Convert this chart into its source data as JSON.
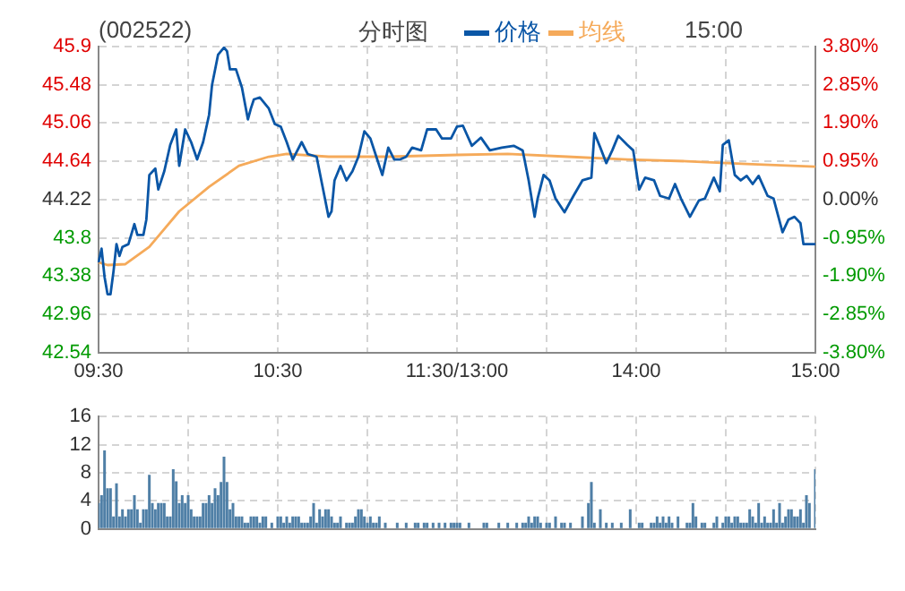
{
  "chart_data": [
    {
      "type": "line",
      "title": "(002522)",
      "subtitle": "分时图",
      "annotations": [
        "15:00"
      ],
      "legend": "top",
      "grid": true,
      "marker": "none",
      "line_style": "solid",
      "categories": [
        "09:30",
        null,
        null,
        null,
        null,
        null,
        null,
        null,
        null,
        null,
        null,
        null,
        null,
        null,
        null,
        null,
        null,
        null,
        null,
        null,
        null,
        null,
        null,
        null,
        null,
        null,
        null,
        null,
        null,
        null,
        null,
        null,
        null,
        null,
        null,
        null,
        null,
        null,
        null,
        null,
        null,
        null,
        null,
        null,
        null,
        null,
        null,
        null,
        null,
        null,
        null,
        null,
        null,
        null,
        null,
        null,
        null,
        null,
        null,
        null,
        "10:30",
        null,
        null,
        null,
        null,
        null,
        null,
        null,
        null,
        null,
        null,
        null,
        null,
        null,
        null,
        null,
        null,
        null,
        null,
        null,
        null,
        null,
        null,
        null,
        null,
        null,
        null,
        null,
        null,
        null,
        null,
        null,
        null,
        null,
        null,
        null,
        null,
        null,
        null,
        null,
        null,
        null,
        null,
        null,
        null,
        null,
        null,
        null,
        null,
        null,
        null,
        null,
        null,
        null,
        null,
        null,
        null,
        null,
        null,
        null,
        "11:30/13:00",
        null,
        null,
        null,
        null,
        null,
        null,
        null,
        null,
        null,
        null,
        null,
        null,
        null,
        null,
        null,
        null,
        null,
        null,
        null,
        null,
        null,
        null,
        null,
        null,
        null,
        null,
        null,
        null,
        null,
        null,
        null,
        null,
        null,
        null,
        null,
        null,
        null,
        null,
        null,
        null,
        null,
        null,
        null,
        null,
        null,
        null,
        null,
        null,
        null,
        null,
        null,
        null,
        null,
        null,
        null,
        null,
        null,
        null,
        null,
        "14:00",
        null,
        null,
        null,
        null,
        null,
        null,
        null,
        null,
        null,
        null,
        null,
        null,
        null,
        null,
        null,
        null,
        null,
        null,
        null,
        null,
        null,
        null,
        null,
        null,
        null,
        null,
        null,
        null,
        null,
        null,
        null,
        null,
        null,
        null,
        null,
        null,
        null,
        null,
        null,
        null,
        null,
        null,
        null,
        null,
        null,
        null,
        null,
        null,
        null,
        null,
        null,
        null,
        null,
        null,
        null,
        null,
        null,
        null,
        null,
        "15:00"
      ],
      "ylim": [
        42.54,
        45.9
      ],
      "yticks": [
        42.54,
        42.96,
        43.38,
        43.8,
        44.22,
        44.64,
        45.06,
        45.48,
        45.9
      ],
      "y2lim": [
        -3.8,
        3.8
      ],
      "y2ticks": [
        {
          "value": -3.8,
          "label": "-3.80%"
        },
        {
          "value": -2.85,
          "label": "-2.85%"
        },
        {
          "value": -1.9,
          "label": "-1.90%"
        },
        {
          "value": -0.95,
          "label": "-0.95%"
        },
        {
          "value": 0,
          "label": "0.00%"
        },
        {
          "value": 0.95,
          "label": "0.95%"
        },
        {
          "value": 1.9,
          "label": "1.90%"
        },
        {
          "value": 2.85,
          "label": "2.85%"
        },
        {
          "value": 3.8,
          "label": "3.80%"
        }
      ],
      "series": [
        {
          "name": "价格",
          "color": "#0a56a6",
          "values": [
            43.53,
            43.68,
            43.37,
            43.18,
            43.18,
            43.43,
            43.73,
            43.6,
            43.7,
            null,
            43.73,
            null,
            43.95,
            43.83,
            null,
            43.83,
            44.0,
            44.49,
            null,
            44.56,
            44.33,
            null,
            44.53,
            null,
            44.82,
            null,
            44.99,
            44.59,
            null,
            44.99,
            null,
            44.85,
            null,
            44.66,
            null,
            44.85,
            null,
            45.15,
            45.48,
            null,
            45.81,
            null,
            45.89,
            45.85,
            45.65,
            null,
            45.65,
            null,
            45.45,
            null,
            45.1,
            45.22,
            45.32,
            null,
            45.34,
            null,
            null,
            45.22,
            null,
            45.05,
            null,
            45.02,
            null,
            44.85,
            null,
            44.66,
            null,
            null,
            44.85,
            null,
            44.72,
            null,
            null,
            44.69,
            null,
            44.36,
            null,
            44.03,
            44.09,
            44.43,
            null,
            44.59,
            null,
            44.43,
            null,
            44.53,
            null,
            44.69,
            null,
            44.97,
            null,
            44.89,
            null,
            44.69,
            null,
            44.49,
            null,
            44.79,
            null,
            44.66,
            null,
            44.66,
            null,
            44.69,
            null,
            44.79,
            null,
            null,
            44.76,
            null,
            44.99,
            null,
            null,
            44.99,
            null,
            44.89,
            null,
            null,
            44.89,
            null,
            45.02,
            null,
            45.03,
            null,
            null,
            44.81,
            null,
            null,
            44.9,
            null,
            null,
            44.76,
            null,
            null,
            null,
            44.79,
            null,
            null,
            null,
            44.81,
            null,
            null,
            44.76,
            null,
            44.43,
            null,
            44.03,
            44.23,
            null,
            44.49,
            null,
            44.43,
            null,
            44.23,
            null,
            null,
            44.08,
            null,
            null,
            44.26,
            null,
            null,
            44.43,
            null,
            null,
            44.46,
            44.95,
            null,
            44.79,
            null,
            44.62,
            null,
            44.76,
            null,
            44.92,
            null,
            null,
            44.82,
            null,
            44.76,
            null,
            44.33,
            null,
            44.46,
            null,
            null,
            44.43,
            null,
            44.26,
            null,
            null,
            44.23,
            null,
            44.39,
            null,
            44.23,
            null,
            null,
            44.03,
            null,
            null,
            44.21,
            null,
            44.23,
            null,
            null,
            44.46,
            null,
            44.31,
            44.82,
            null,
            44.87,
            null,
            44.49,
            null,
            44.43,
            null,
            44.48,
            null,
            44.39,
            null,
            44.48,
            null,
            null,
            44.26,
            null,
            44.23,
            null,
            null,
            43.86,
            null,
            44.0,
            null,
            44.03,
            null,
            43.96,
            43.73,
            null,
            null,
            null,
            43.73
          ]
        },
        {
          "name": "均线",
          "color": "#f5aa5a",
          "values": [
            43.53,
            null,
            null,
            43.5,
            null,
            null,
            null,
            null,
            null,
            43.51,
            null,
            null,
            null,
            null,
            null,
            null,
            null,
            43.7,
            null,
            null,
            null,
            null,
            null,
            null,
            null,
            null,
            null,
            44.09,
            null,
            null,
            null,
            null,
            null,
            null,
            null,
            null,
            null,
            44.36,
            null,
            null,
            null,
            null,
            null,
            null,
            null,
            null,
            null,
            44.59,
            null,
            null,
            null,
            null,
            null,
            null,
            null,
            null,
            null,
            44.69,
            null,
            null,
            null,
            null,
            null,
            44.72,
            null,
            null,
            null,
            null,
            null,
            null,
            null,
            null,
            null,
            null,
            null,
            null,
            null,
            44.69,
            null,
            null,
            null,
            null,
            null,
            null,
            null,
            null,
            null,
            null,
            null,
            null,
            null,
            null,
            null,
            null,
            null,
            null,
            null,
            44.69,
            null,
            null,
            null,
            null,
            null,
            null,
            null,
            null,
            null,
            null,
            null,
            null,
            null,
            null,
            null,
            null,
            null,
            null,
            null,
            null,
            null,
            null,
            44.71,
            null,
            null,
            null,
            null,
            null,
            null,
            null,
            null,
            null,
            null,
            null,
            null,
            null,
            null,
            null,
            null,
            44.72,
            null,
            null,
            null,
            null,
            null,
            null,
            null,
            null,
            null,
            null,
            null,
            null,
            null,
            null,
            null,
            null,
            null,
            null,
            null,
            44.69,
            null,
            null,
            null,
            null,
            null,
            null,
            null,
            null,
            null,
            null,
            null,
            null,
            null,
            null,
            null,
            null,
            null,
            null,
            null,
            44.66,
            null,
            null,
            null,
            null,
            null,
            null,
            null,
            null,
            null,
            null,
            null,
            null,
            null,
            null,
            null,
            null,
            null,
            null,
            null,
            44.64,
            null,
            null,
            null,
            null,
            null,
            null,
            null,
            null,
            null,
            null,
            null,
            null,
            null,
            null,
            null,
            null,
            null,
            null,
            null,
            44.61,
            null,
            null,
            null,
            null,
            null,
            null,
            null,
            null,
            null,
            null,
            null,
            null,
            null,
            null,
            null,
            null,
            null,
            null,
            null,
            null,
            null,
            null,
            44.58
          ]
        }
      ]
    },
    {
      "type": "bar",
      "tick_labels": "y",
      "grid": true,
      "ylim": [
        0,
        16
      ],
      "yticks": [
        0,
        4,
        8,
        12,
        16
      ],
      "categories": [
        null,
        null,
        null,
        null,
        null,
        null,
        null,
        null,
        null,
        null,
        null,
        null,
        null,
        null,
        null,
        null,
        null,
        null,
        null,
        null,
        null,
        null,
        null,
        null,
        null,
        null,
        null,
        null,
        null,
        null,
        null,
        null,
        null,
        null,
        null,
        null,
        null,
        null,
        null,
        null,
        null,
        null,
        null,
        null,
        null,
        null,
        null,
        null,
        null,
        null,
        null,
        null,
        null,
        null,
        null,
        null,
        null,
        null,
        null,
        null,
        null,
        null,
        null,
        null,
        null,
        null,
        null,
        null,
        null,
        null,
        null,
        null,
        null,
        null,
        null,
        null,
        null,
        null,
        null,
        null,
        null,
        null,
        null,
        null,
        null,
        null,
        null,
        null,
        null,
        null,
        null,
        null,
        null,
        null,
        null,
        null,
        null,
        null,
        null,
        null,
        null,
        null,
        null,
        null,
        null,
        null,
        null,
        null,
        null,
        null,
        null,
        null,
        null,
        null,
        null,
        null,
        null,
        null,
        null,
        null,
        null,
        null,
        null,
        null,
        null,
        null,
        null,
        null,
        null,
        null,
        null,
        null,
        null,
        null,
        null,
        null,
        null,
        null,
        null,
        null,
        null,
        null,
        null,
        null,
        null,
        null,
        null,
        null,
        null,
        null,
        null,
        null,
        null,
        null,
        null,
        null,
        null,
        null,
        null,
        null,
        null,
        null,
        null,
        null,
        null,
        null,
        null,
        null,
        null,
        null,
        null,
        null,
        null,
        null,
        null,
        null,
        null,
        null,
        null,
        null,
        null,
        null,
        null,
        null,
        null,
        null,
        null,
        null,
        null,
        null,
        null,
        null,
        null,
        null,
        null,
        null,
        null,
        null,
        null,
        null,
        null,
        null,
        null,
        null,
        null,
        null,
        null,
        null,
        null,
        null,
        null,
        null,
        null,
        null,
        null,
        null,
        null,
        null,
        null,
        null,
        null,
        null,
        null,
        null,
        null,
        null,
        null,
        null,
        null,
        null,
        null,
        null,
        null,
        null,
        null,
        null,
        null,
        null,
        null,
        null,
        null
      ],
      "series": [
        {
          "color": "#4f7fa6",
          "values": [
            3.7,
            4.8,
            11.2,
            5.8,
            5.8,
            1.8,
            6.5,
            1.8,
            2.8,
            1.8,
            2.8,
            2.8,
            4.8,
            2.8,
            0.9,
            2.8,
            2.8,
            7.7,
            3.7,
            2.8,
            3.7,
            3.7,
            3.7,
            1.8,
            1.8,
            8.5,
            6.8,
            3.7,
            4.8,
            3.7,
            4.8,
            2.8,
            1.8,
            1.8,
            1.8,
            3.7,
            3.7,
            4.8,
            3.7,
            5.8,
            4.8,
            6.7,
            10.3,
            6.7,
            2.8,
            3.7,
            1.8,
            1.8,
            1.8,
            0.9,
            0.9,
            1.8,
            1.8,
            1.8,
            0.9,
            1.8,
            1.8,
            null,
            0.9,
            null,
            1.8,
            1.8,
            0.9,
            1.8,
            0.9,
            1.8,
            1.8,
            1.8,
            0.9,
            0.9,
            0.9,
            1.8,
            3.7,
            0.9,
            2.8,
            1.8,
            2.8,
            2.8,
            1.8,
            0.9,
            0.9,
            1.8,
            null,
            0.9,
            0.9,
            0.9,
            1.8,
            2.8,
            2.8,
            1.8,
            0.9,
            1.8,
            0.9,
            0.9,
            1.8,
            null,
            0.9,
            null,
            null,
            null,
            0.9,
            null,
            null,
            0.9,
            null,
            null,
            0.9,
            0.9,
            null,
            0.9,
            0.9,
            null,
            0.9,
            null,
            0.9,
            null,
            0.9,
            null,
            0.9,
            0.9,
            0.9,
            0.9,
            null,
            null,
            0.9,
            null,
            null,
            null,
            null,
            0.9,
            0.9,
            null,
            null,
            null,
            0.9,
            null,
            null,
            0.9,
            null,
            null,
            0.9,
            null,
            0.9,
            0.9,
            1.8,
            0.9,
            1.8,
            1.8,
            0.9,
            null,
            0.9,
            0.9,
            null,
            1.8,
            null,
            0.9,
            0.9,
            null,
            0.9,
            null,
            null,
            null,
            1.8,
            null,
            3.7,
            6.7,
            0.9,
            null,
            2.8,
            null,
            0.9,
            null,
            0.9,
            null,
            null,
            0.9,
            null,
            null,
            2.8,
            null,
            null,
            0.9,
            0.9,
            null,
            null,
            0.9,
            0.9,
            1.8,
            0.9,
            1.8,
            0.9,
            1.8,
            0.9,
            null,
            1.8,
            null,
            null,
            0.9,
            0.9,
            3.7,
            1.8,
            null,
            0.9,
            0.9,
            null,
            null,
            0.9,
            1.8,
            null,
            0.9,
            1.8,
            1.8,
            0.9,
            1.8,
            1.8,
            0.9,
            0.9,
            0.9,
            2.8,
            1.8,
            0.9,
            3.7,
            0.9,
            1.8,
            0.9,
            0.9,
            2.8,
            0.9,
            3.7,
            0.9,
            1.8,
            2.8,
            2.8,
            1.8,
            1.8,
            2.8,
            0.9,
            4.8,
            3.7,
            null,
            8.5
          ]
        }
      ]
    }
  ]
}
